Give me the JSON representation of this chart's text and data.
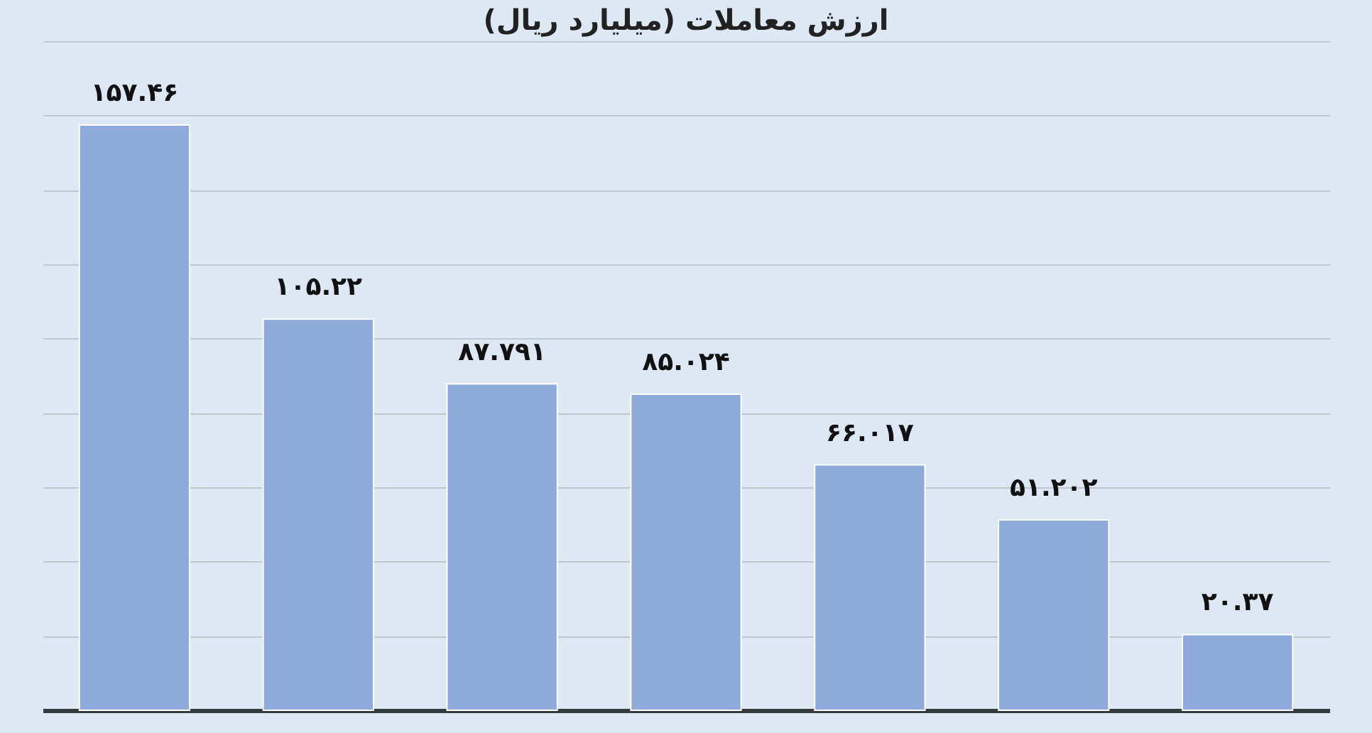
{
  "chart_data": {
    "type": "bar",
    "title": "ارزش معاملات (میلیارد ریال)",
    "categories": [
      null,
      null,
      null,
      null,
      null,
      null,
      null
    ],
    "values": [
      157.46,
      105.22,
      87.791,
      85.024,
      66.017,
      51.202,
      20.37
    ],
    "value_labels": [
      "۱۵۷.۴۶",
      "۱۰۵.۲۲",
      "۸۷.۷۹۱",
      "۸۵.۰۲۴",
      "۶۶.۰۱۷",
      "۵۱.۲۰۲",
      "۲۰.۳۷"
    ],
    "color": "#8eaadb",
    "ylim": [
      0,
      180
    ],
    "yticks": [
      0,
      {
        "value": 20,
        "label": null
      },
      {
        "value": 40,
        "label": null
      },
      {
        "value": 60,
        "label": null
      },
      {
        "value": 80,
        "label": null
      },
      {
        "value": 100,
        "label": null
      },
      {
        "value": 120,
        "label": null
      },
      {
        "value": 140,
        "label": null
      },
      {
        "value": 160,
        "label": null
      },
      {
        "value": 180,
        "label": null
      }
    ],
    "tick_labels": false,
    "grid": "y"
  }
}
